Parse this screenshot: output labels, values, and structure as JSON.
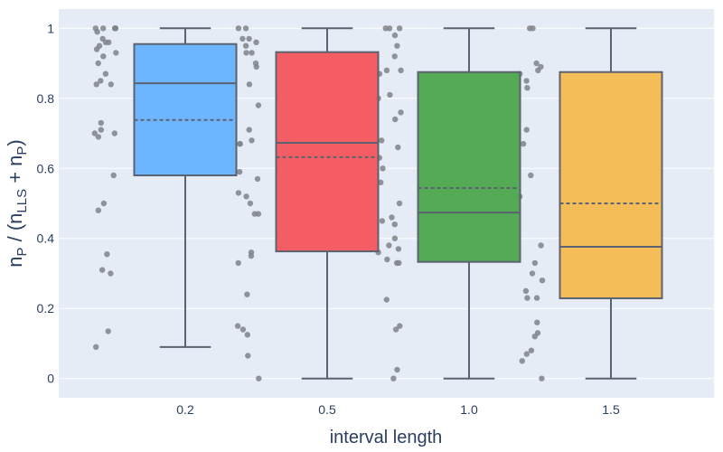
{
  "chart_data": {
    "type": "box",
    "xlabel": "interval length",
    "ylabel": "n_P / (n_LLS + n_P)",
    "ylabel_parts": {
      "base1": "n",
      "sub1": "P",
      "mid": " / (n",
      "sub2": "LLS",
      "plus": " + n",
      "sub3": "P",
      "close": ")"
    },
    "categories": [
      "0.2",
      "0.5",
      "1.0",
      "1.5"
    ],
    "ylim": [
      -0.055,
      1.055
    ],
    "yticks": [
      0,
      0.2,
      0.4,
      0.6,
      0.8,
      1
    ],
    "ytick_labels": [
      "0",
      "0.2",
      "0.4",
      "0.6",
      "0.8",
      "1"
    ],
    "grid": true,
    "boxes": [
      {
        "category": "0.2",
        "color": "#66b2ff",
        "lower_whisker": 0.09,
        "q1": 0.58,
        "median": 0.843,
        "q3": 0.955,
        "upper_whisker": 1.0,
        "mean": 0.738
      },
      {
        "category": "0.5",
        "color": "#f5555d",
        "lower_whisker": 0.0,
        "q1": 0.363,
        "median": 0.673,
        "q3": 0.932,
        "upper_whisker": 1.0,
        "mean": 0.632
      },
      {
        "category": "1.0",
        "color": "#4ca64c",
        "lower_whisker": 0.0,
        "q1": 0.333,
        "median": 0.474,
        "q3": 0.875,
        "upper_whisker": 1.0,
        "mean": 0.544
      },
      {
        "category": "1.5",
        "color": "#f5bb4f",
        "lower_whisker": 0.0,
        "q1": 0.229,
        "median": 0.376,
        "q3": 0.875,
        "upper_whisker": 1.0,
        "mean": 0.5
      }
    ],
    "points": [
      {
        "category": "0.2",
        "values": [
          1,
          1,
          1,
          1,
          1,
          0.99,
          0.97,
          0.96,
          0.96,
          0.95,
          0.94,
          0.93,
          0.92,
          0.9,
          0.87,
          0.85,
          0.84,
          0.84,
          0.73,
          0.71,
          0.7,
          0.7,
          0.69,
          0.58,
          0.5,
          0.48,
          0.355,
          0.31,
          0.3,
          0.135,
          0.09
        ]
      },
      {
        "category": "0.5",
        "values": [
          1,
          1,
          0.97,
          0.97,
          0.96,
          0.95,
          0.93,
          0.93,
          0.9,
          0.89,
          0.84,
          0.78,
          0.71,
          0.68,
          0.67,
          0.67,
          0.59,
          0.57,
          0.53,
          0.52,
          0.5,
          0.47,
          0.47,
          0.36,
          0.35,
          0.33,
          0.24,
          0.15,
          0.14,
          0.125,
          0.065,
          0.0
        ]
      },
      {
        "category": "1.0",
        "values": [
          1,
          1,
          1,
          0.98,
          0.95,
          0.92,
          0.88,
          0.88,
          0.87,
          0.81,
          0.8,
          0.76,
          0.74,
          0.68,
          0.66,
          0.63,
          0.6,
          0.56,
          0.5,
          0.46,
          0.45,
          0.44,
          0.4,
          0.38,
          0.37,
          0.36,
          0.34,
          0.33,
          0.33,
          0.225,
          0.15,
          0.14,
          0.025,
          0.0
        ]
      },
      {
        "category": "1.5",
        "values": [
          1,
          1,
          0.9,
          0.89,
          0.88,
          0.87,
          0.85,
          0.83,
          0.71,
          0.67,
          0.58,
          0.52,
          0.38,
          0.33,
          0.3,
          0.28,
          0.25,
          0.23,
          0.23,
          0.16,
          0.13,
          0.12,
          0.08,
          0.07,
          0.05,
          0.0
        ]
      }
    ],
    "styles": {
      "plot_bg": "#e5ecf6",
      "grid_color": "#ffffff",
      "box_line": "#5b6270",
      "point_color": "#808488",
      "text_color": "#2a3f5f"
    }
  }
}
